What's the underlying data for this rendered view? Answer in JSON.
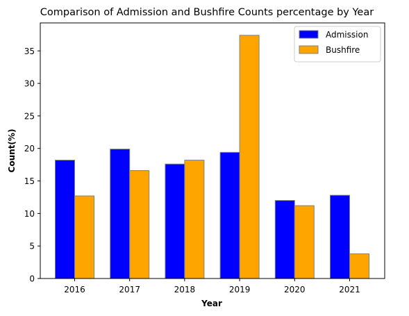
{
  "chart_data": {
    "type": "bar",
    "title": "Comparison of Admission and Bushfire Counts percentage by Year",
    "xlabel": "Year",
    "ylabel": "Count(%)",
    "categories": [
      "2016",
      "2017",
      "2018",
      "2019",
      "2020",
      "2021"
    ],
    "series": [
      {
        "name": "Admission",
        "color": "#0000ff",
        "values": [
          18.2,
          19.9,
          17.6,
          19.4,
          12.0,
          12.8
        ]
      },
      {
        "name": "Bushfire",
        "color": "#ffa500",
        "values": [
          12.7,
          16.6,
          18.2,
          37.4,
          11.2,
          3.8
        ]
      }
    ],
    "ylim": [
      0,
      39.3
    ],
    "yticks": [
      0,
      5,
      10,
      15,
      20,
      25,
      30,
      35
    ],
    "grid": false,
    "legend_position": "top-right",
    "bar_edge_color": "#808080"
  }
}
